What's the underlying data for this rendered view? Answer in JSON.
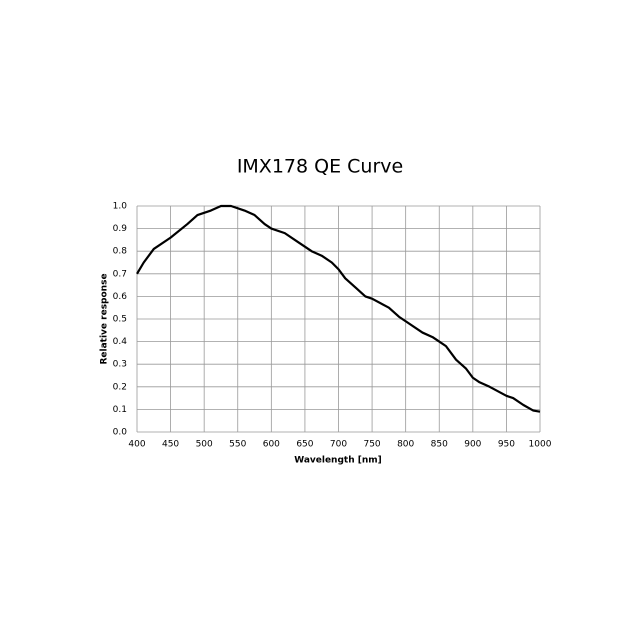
{
  "chart_data": {
    "type": "line",
    "title": "IMX178 QE Curve",
    "xlabel": "Wavelength [nm]",
    "ylabel": "Relative response",
    "x": [
      400,
      410,
      425,
      450,
      475,
      490,
      500,
      510,
      525,
      540,
      560,
      575,
      590,
      600,
      620,
      640,
      650,
      660,
      675,
      690,
      700,
      710,
      725,
      740,
      750,
      775,
      790,
      800,
      825,
      840,
      850,
      860,
      875,
      890,
      900,
      910,
      925,
      950,
      960,
      975,
      990,
      1000
    ],
    "series": [
      {
        "name": "QE",
        "color": "#000000",
        "values": [
          0.7,
          0.75,
          0.81,
          0.86,
          0.92,
          0.96,
          0.97,
          0.98,
          1.0,
          1.0,
          0.98,
          0.96,
          0.92,
          0.9,
          0.88,
          0.84,
          0.82,
          0.8,
          0.78,
          0.75,
          0.72,
          0.68,
          0.64,
          0.6,
          0.59,
          0.55,
          0.51,
          0.49,
          0.44,
          0.42,
          0.4,
          0.38,
          0.32,
          0.28,
          0.24,
          0.22,
          0.2,
          0.16,
          0.15,
          0.12,
          0.095,
          0.09
        ]
      }
    ],
    "xlim": [
      400,
      1000
    ],
    "xticks": [
      400,
      450,
      500,
      550,
      600,
      650,
      700,
      750,
      800,
      850,
      900,
      950,
      1000
    ],
    "ylim": [
      0,
      1
    ],
    "yticks": [
      {
        "value": 0,
        "label": "0.0"
      },
      0.1,
      0.2,
      0.3,
      0.4,
      0.5,
      0.6,
      0.7,
      0.8,
      0.9,
      {
        "value": 1,
        "label": "1.0"
      }
    ],
    "grid": true
  }
}
